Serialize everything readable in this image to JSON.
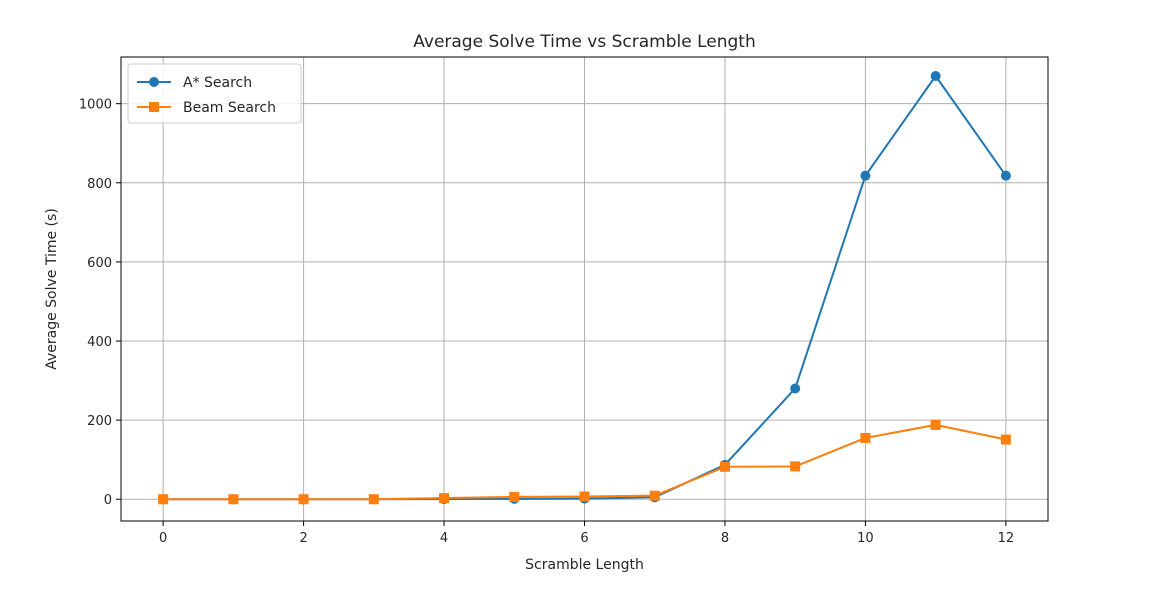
{
  "chart_data": {
    "type": "line",
    "title": "Average Solve Time vs Scramble Length",
    "xlabel": "Scramble Length",
    "ylabel": "Average Solve Time (s)",
    "xlim": [
      -0.6,
      12.6
    ],
    "ylim": [
      -55,
      1118
    ],
    "xticks": [
      "0",
      "2",
      "4",
      "6",
      "8",
      "10",
      "12"
    ],
    "yticks": [
      "0",
      "200",
      "400",
      "600",
      "800",
      "1000"
    ],
    "grid": true,
    "legend_position": "top-left",
    "x": [
      0,
      1,
      2,
      3,
      4,
      5,
      6,
      7,
      8,
      9,
      10,
      11,
      12
    ],
    "series": [
      {
        "name": "A* Search",
        "marker": "circle",
        "color": "#1f77b4",
        "values": [
          0,
          0,
          0,
          0,
          0.5,
          1,
          1.5,
          5,
          87,
          280,
          818,
          1070,
          818
        ]
      },
      {
        "name": "Beam Search",
        "marker": "square",
        "color": "#ff7f0e",
        "values": [
          0,
          0,
          0,
          0,
          3,
          6,
          7,
          9,
          82,
          83,
          155,
          188,
          151
        ]
      }
    ]
  }
}
